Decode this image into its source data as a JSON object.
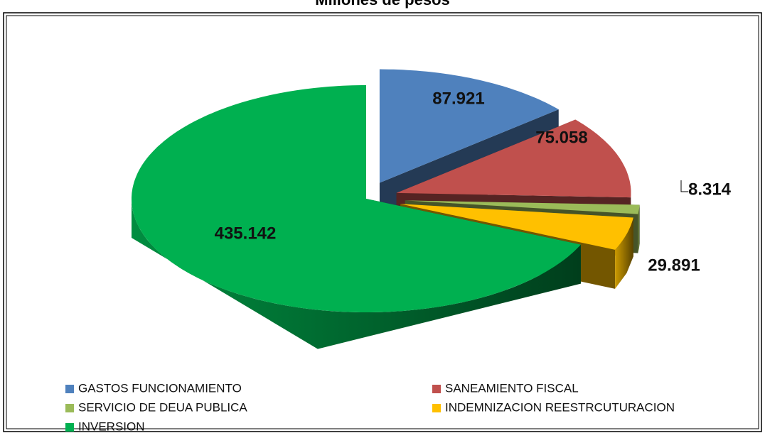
{
  "chart_data": {
    "type": "pie",
    "title": "Millones de pesos",
    "categories": [
      "GASTOS FUNCIONAMIENTO",
      "SANEAMIENTO FISCAL",
      "SERVICIO DE DEUA PUBLICA",
      "INDEMNIZACION REESTRCUTURACION",
      "INVERSION"
    ],
    "values": [
      87.921,
      75.058,
      8.314,
      29.891,
      435.142
    ],
    "colors": [
      "#4f81bd",
      "#c0504d",
      "#9bbb59",
      "#ffc000",
      "#00b050"
    ],
    "legend": "bottom"
  }
}
